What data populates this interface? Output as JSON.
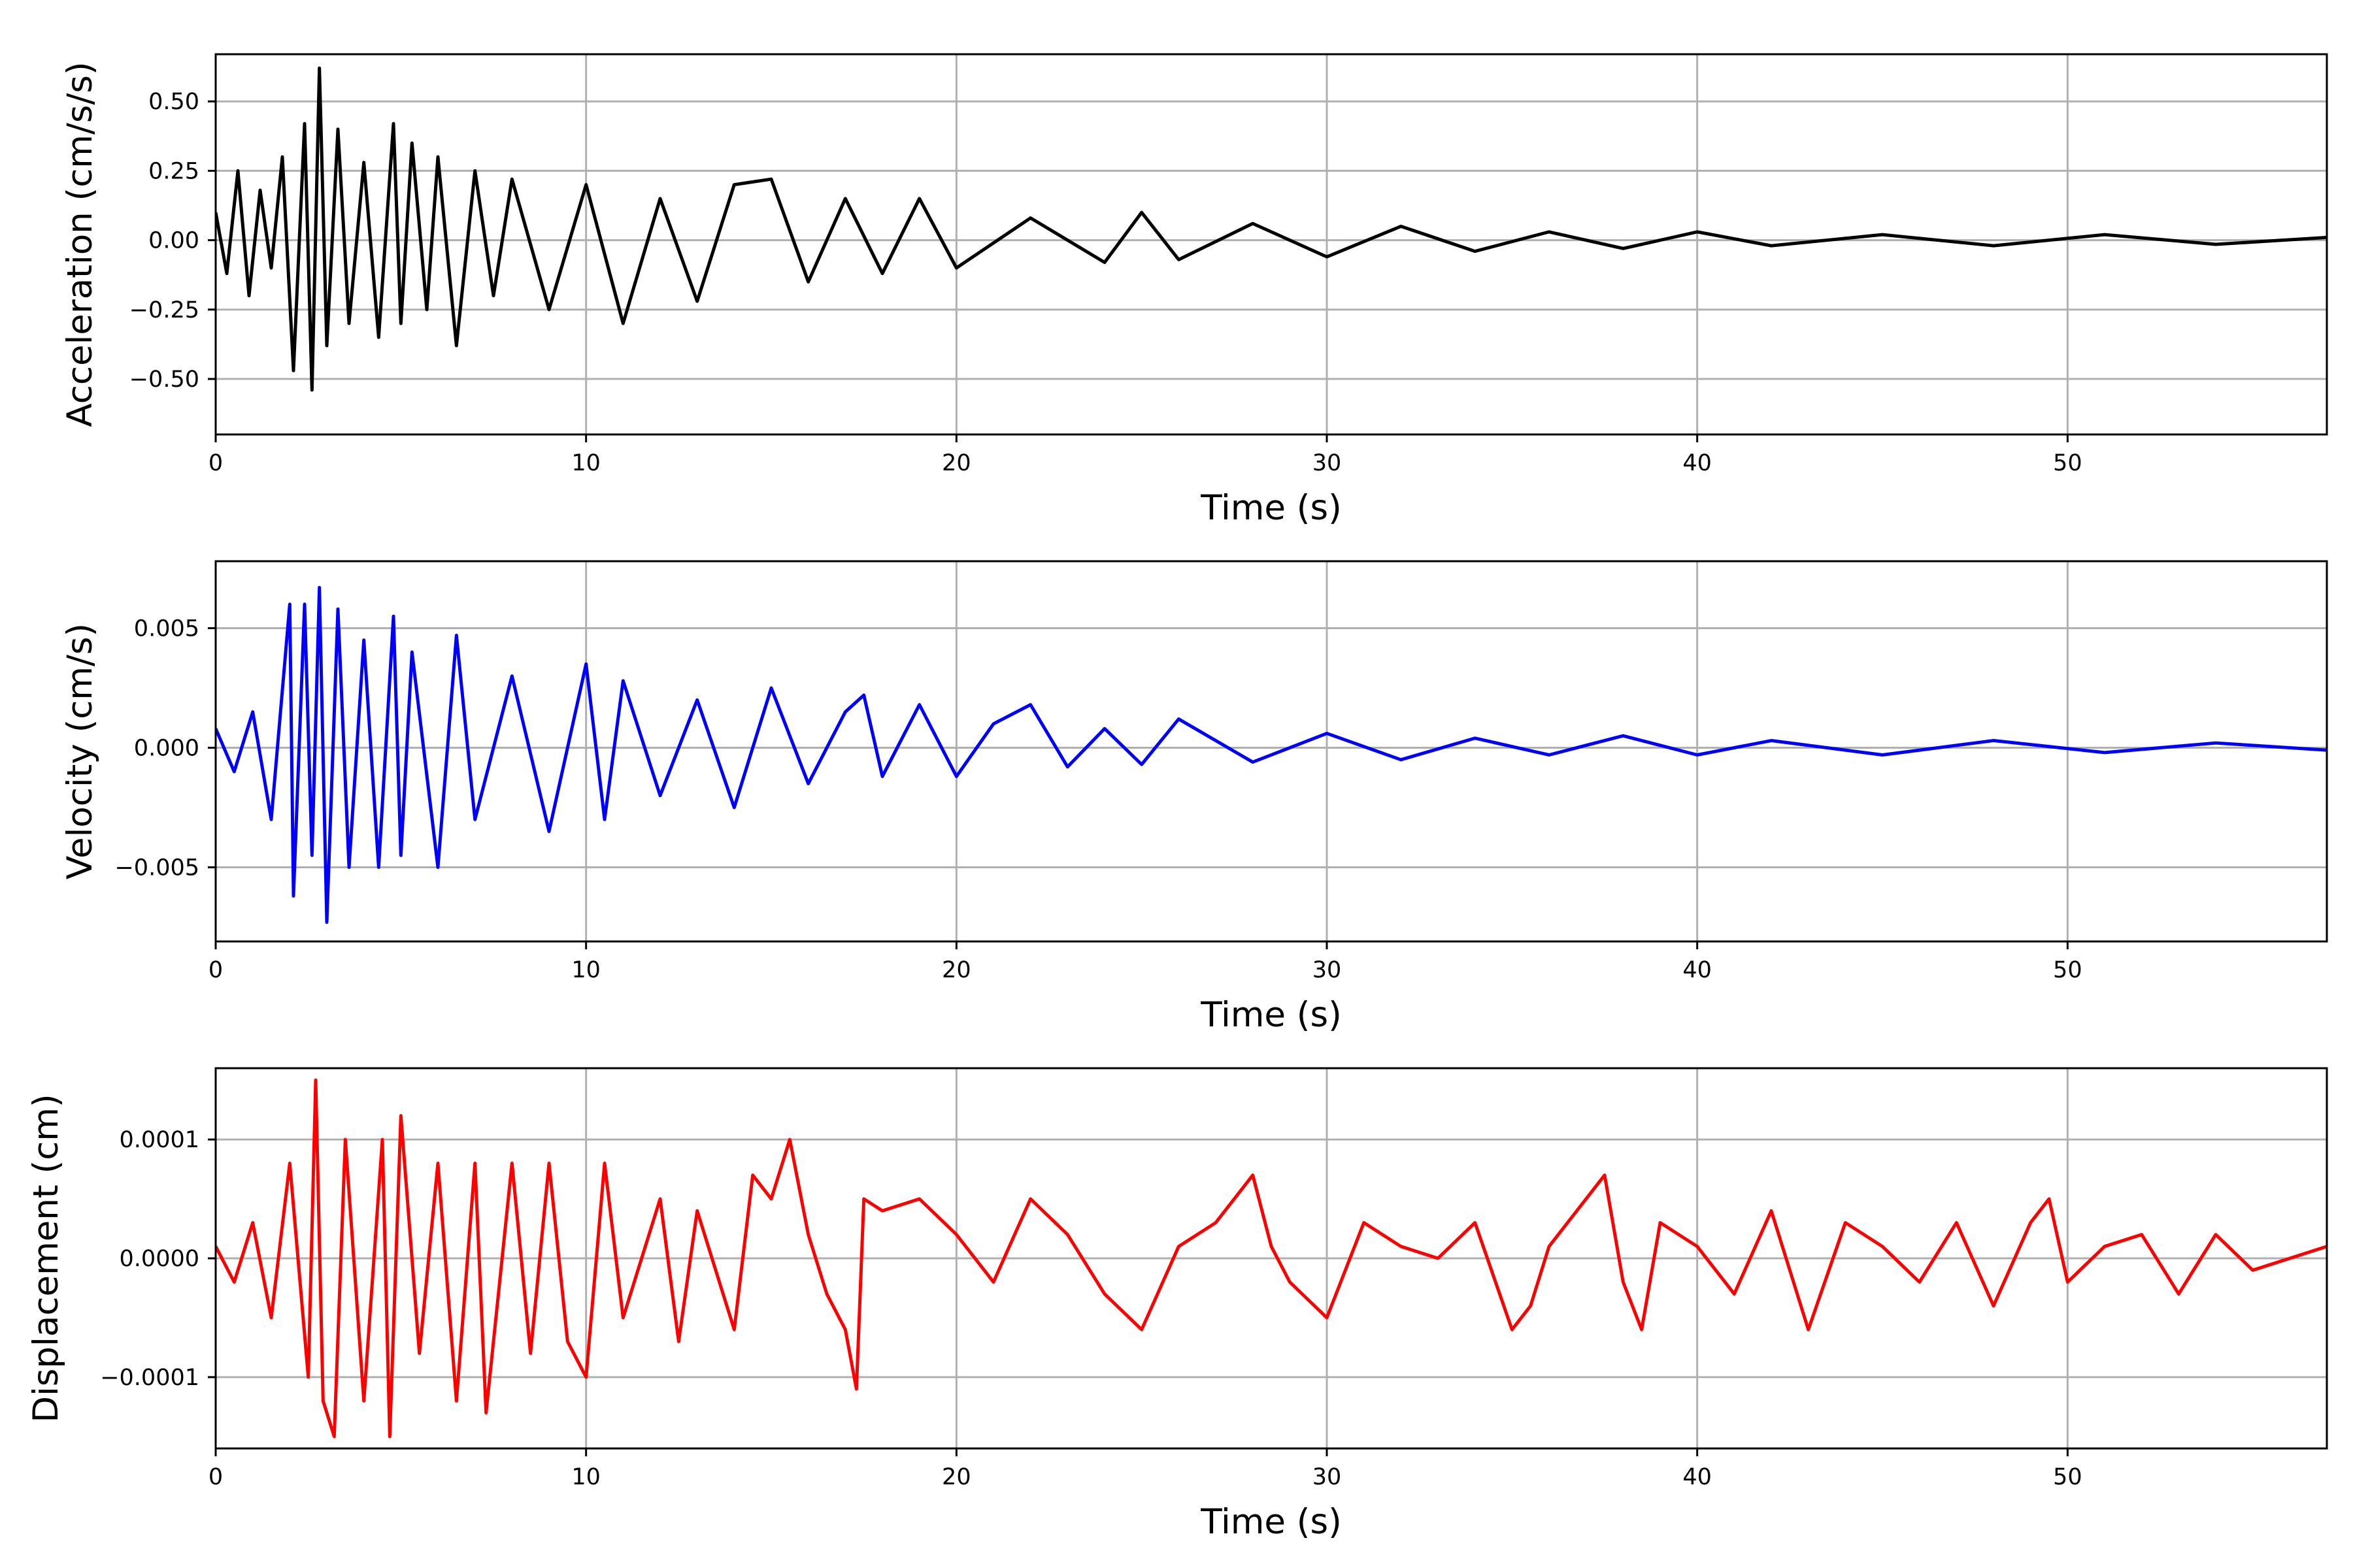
{
  "chart_data": [
    {
      "type": "line",
      "xlabel": "Time (s)",
      "ylabel": "Acceleration (cm/s/s)",
      "xlim": [
        0,
        57
      ],
      "ylim": [
        -0.7,
        0.67
      ],
      "xticks": [
        0,
        10,
        20,
        30,
        40,
        50
      ],
      "xtick_labels": [
        "0",
        "10",
        "20",
        "30",
        "40",
        "50"
      ],
      "yticks": [
        0.5,
        0.25,
        0.0,
        -0.25,
        -0.5
      ],
      "ytick_labels": [
        "0.50",
        "0.25",
        "0.00",
        "−0.25",
        "−0.50"
      ],
      "grid": true,
      "color": "#000000",
      "series": [
        {
          "x": [
            0,
            0.3,
            0.6,
            0.9,
            1.2,
            1.5,
            1.8,
            2.1,
            2.4,
            2.6,
            2.8,
            3.0,
            3.3,
            3.6,
            4.0,
            4.4,
            4.8,
            5.0,
            5.3,
            5.7,
            6.0,
            6.5,
            7.0,
            7.5,
            8.0,
            9.0,
            10.0,
            11.0,
            12.0,
            13.0,
            14.0,
            15.0,
            16.0,
            17.0,
            18.0,
            19.0,
            20.0,
            22.0,
            24.0,
            25.0,
            26.0,
            28.0,
            30.0,
            32.0,
            34.0,
            36.0,
            38.0,
            40.0,
            42.0,
            45.0,
            48.0,
            51.0,
            54.0,
            57.0
          ],
          "values": [
            0.1,
            -0.12,
            0.25,
            -0.2,
            0.18,
            -0.1,
            0.3,
            -0.47,
            0.42,
            -0.54,
            0.62,
            -0.38,
            0.4,
            -0.3,
            0.28,
            -0.35,
            0.42,
            -0.3,
            0.35,
            -0.25,
            0.3,
            -0.38,
            0.25,
            -0.2,
            0.22,
            -0.25,
            0.2,
            -0.3,
            0.15,
            -0.22,
            0.2,
            0.22,
            -0.15,
            0.15,
            -0.12,
            0.15,
            -0.1,
            0.08,
            -0.08,
            0.1,
            -0.07,
            0.06,
            -0.06,
            0.05,
            -0.04,
            0.03,
            -0.03,
            0.03,
            -0.02,
            0.02,
            -0.02,
            0.02,
            -0.015,
            0.01
          ]
        }
      ]
    },
    {
      "type": "line",
      "xlabel": "Time (s)",
      "ylabel": "Velocity (cm/s)",
      "xlim": [
        0,
        57
      ],
      "ylim": [
        -0.0081,
        0.0078
      ],
      "xticks": [
        0,
        10,
        20,
        30,
        40,
        50
      ],
      "xtick_labels": [
        "0",
        "10",
        "20",
        "30",
        "40",
        "50"
      ],
      "yticks": [
        0.005,
        0.0,
        -0.005
      ],
      "ytick_labels": [
        "0.005",
        "0.000",
        "−0.005"
      ],
      "grid": true,
      "color": "#0000ff",
      "series": [
        {
          "x": [
            0,
            0.5,
            1.0,
            1.5,
            2.0,
            2.1,
            2.4,
            2.6,
            2.8,
            3.0,
            3.3,
            3.6,
            4.0,
            4.4,
            4.8,
            5.0,
            5.3,
            6.0,
            6.5,
            7.0,
            8.0,
            9.0,
            10.0,
            10.5,
            11.0,
            12.0,
            13.0,
            14.0,
            15.0,
            16.0,
            17.0,
            17.5,
            18.0,
            19.0,
            20.0,
            21.0,
            22.0,
            23.0,
            24.0,
            25.0,
            26.0,
            28.0,
            30.0,
            32.0,
            34.0,
            36.0,
            38.0,
            40.0,
            42.0,
            45.0,
            48.0,
            51.0,
            54.0,
            57.0
          ],
          "values": [
            0.0008,
            -0.001,
            0.0015,
            -0.003,
            0.006,
            -0.0062,
            0.006,
            -0.0045,
            0.0067,
            -0.0073,
            0.0058,
            -0.005,
            0.0045,
            -0.005,
            0.0055,
            -0.0045,
            0.004,
            -0.005,
            0.0047,
            -0.003,
            0.003,
            -0.0035,
            0.0035,
            -0.003,
            0.0028,
            -0.002,
            0.002,
            -0.0025,
            0.0025,
            -0.0015,
            0.0015,
            0.0022,
            -0.0012,
            0.0018,
            -0.0012,
            0.001,
            0.0018,
            -0.0008,
            0.0008,
            -0.0007,
            0.0012,
            -0.0006,
            0.0006,
            -0.0005,
            0.0004,
            -0.0003,
            0.0005,
            -0.0003,
            0.0003,
            -0.0003,
            0.0003,
            -0.0002,
            0.0002,
            -0.0001
          ]
        }
      ]
    },
    {
      "type": "line",
      "xlabel": "Time (s)",
      "ylabel": "Displacement (cm)",
      "xlim": [
        0,
        57
      ],
      "ylim": [
        -0.00016,
        0.00016
      ],
      "xticks": [
        0,
        10,
        20,
        30,
        40,
        50
      ],
      "xtick_labels": [
        "0",
        "10",
        "20",
        "30",
        "40",
        "50"
      ],
      "yticks": [
        0.0001,
        0.0,
        -0.0001
      ],
      "ytick_labels": [
        "0.0001",
        "0.0000",
        "−0.0001"
      ],
      "grid": true,
      "color": "#ff0000",
      "series": [
        {
          "x": [
            0,
            0.5,
            1.0,
            1.5,
            2.0,
            2.5,
            2.7,
            2.9,
            3.2,
            3.5,
            4.0,
            4.5,
            4.7,
            5.0,
            5.5,
            6.0,
            6.5,
            7.0,
            7.3,
            8.0,
            8.5,
            9.0,
            9.5,
            10.0,
            10.5,
            11.0,
            12.0,
            12.5,
            13.0,
            14.0,
            14.5,
            15.0,
            15.5,
            16.0,
            16.5,
            17.0,
            17.3,
            17.5,
            18.0,
            19.0,
            20.0,
            21.0,
            22.0,
            23.0,
            24.0,
            25.0,
            26.0,
            27.0,
            28.0,
            28.5,
            29.0,
            30.0,
            31.0,
            32.0,
            33.0,
            34.0,
            35.0,
            35.5,
            36.0,
            37.0,
            37.5,
            38.0,
            38.5,
            39.0,
            40.0,
            41.0,
            42.0,
            43.0,
            44.0,
            45.0,
            46.0,
            47.0,
            48.0,
            49.0,
            49.5,
            50.0,
            51.0,
            52.0,
            53.0,
            54.0,
            55.0,
            56.0,
            57.0
          ],
          "values": [
            1e-05,
            -2e-05,
            3e-05,
            -5e-05,
            8e-05,
            -0.0001,
            0.00015,
            -0.00012,
            -0.00015,
            0.0001,
            -0.00012,
            0.0001,
            -0.00015,
            0.00012,
            -8e-05,
            8e-05,
            -0.00012,
            8e-05,
            -0.00013,
            8e-05,
            -8e-05,
            8e-05,
            -7e-05,
            -0.0001,
            8e-05,
            -5e-05,
            5e-05,
            -7e-05,
            4e-05,
            -6e-05,
            7e-05,
            5e-05,
            0.0001,
            2e-05,
            -3e-05,
            -6e-05,
            -0.00011,
            5e-05,
            4e-05,
            5e-05,
            2e-05,
            -2e-05,
            5e-05,
            2e-05,
            -3e-05,
            -6e-05,
            1e-05,
            3e-05,
            7e-05,
            1e-05,
            -2e-05,
            -5e-05,
            3e-05,
            1e-05,
            0.0,
            3e-05,
            -6e-05,
            -4e-05,
            1e-05,
            5e-05,
            7e-05,
            -2e-05,
            -6e-05,
            3e-05,
            1e-05,
            -3e-05,
            4e-05,
            -6e-05,
            3e-05,
            1e-05,
            -2e-05,
            3e-05,
            -4e-05,
            3e-05,
            5e-05,
            -2e-05,
            1e-05,
            2e-05,
            -3e-05,
            2e-05,
            -1e-05,
            0.0,
            1e-05
          ]
        }
      ]
    }
  ]
}
